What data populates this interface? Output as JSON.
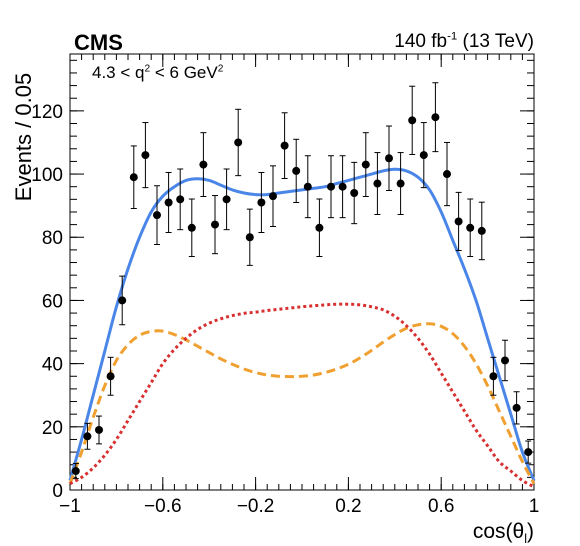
{
  "header": {
    "experiment": "CMS",
    "lumi_value": "140 fb",
    "lumi_exp": "-1",
    "energy": "(13 TeV)",
    "cut_low": "4.3 < q",
    "cut_exp": "2",
    "cut_high": " < 6 GeV",
    "cut_unit_exp": "2"
  },
  "axes": {
    "xlabel_main": "cos(θ",
    "xlabel_sub": "l",
    "xlabel_close": ")",
    "ylabel": "Events / 0.05"
  },
  "chart_data": {
    "type": "scatter",
    "title": "",
    "xlabel": "cos(θl)",
    "ylabel": "Events / 0.05",
    "xlim": [
      -1,
      1
    ],
    "ylim": [
      0,
      138
    ],
    "xticks": [
      -1,
      -0.6,
      -0.2,
      0.2,
      0.6,
      1
    ],
    "xtick_labels": [
      "−1",
      "−0.6",
      "−0.2",
      "0.2",
      "0.6",
      "1"
    ],
    "yticks": [
      0,
      20,
      40,
      60,
      80,
      100,
      120
    ],
    "ytick_labels": [
      "0",
      "20",
      "40",
      "60",
      "80",
      "100",
      "120"
    ],
    "grid": false,
    "data_points": {
      "x": [
        -0.975,
        -0.925,
        -0.875,
        -0.825,
        -0.775,
        -0.725,
        -0.675,
        -0.625,
        -0.575,
        -0.525,
        -0.475,
        -0.425,
        -0.375,
        -0.325,
        -0.275,
        -0.225,
        -0.175,
        -0.125,
        -0.075,
        -0.025,
        0.025,
        0.075,
        0.125,
        0.175,
        0.225,
        0.275,
        0.325,
        0.375,
        0.425,
        0.475,
        0.525,
        0.575,
        0.625,
        0.675,
        0.725,
        0.775,
        0.825,
        0.875,
        0.925,
        0.975
      ],
      "y": [
        6,
        17,
        19,
        36,
        60,
        99,
        106,
        87,
        91,
        92,
        83,
        103,
        84,
        92,
        110,
        80,
        91,
        93,
        109,
        101,
        96,
        83,
        96,
        96,
        94,
        103,
        97,
        105,
        97,
        117,
        106,
        118,
        100,
        85,
        83,
        82,
        36,
        41,
        26,
        12
      ],
      "err": [
        2.4,
        4.1,
        4.4,
        6.0,
        7.7,
        9.9,
        10.3,
        9.3,
        9.5,
        9.6,
        9.1,
        10.1,
        9.2,
        9.6,
        10.5,
        8.9,
        9.5,
        9.6,
        10.4,
        10.0,
        9.8,
        9.1,
        9.8,
        9.8,
        9.7,
        10.1,
        9.8,
        10.2,
        9.8,
        10.8,
        10.3,
        10.9,
        10.0,
        9.2,
        9.1,
        9.1,
        6.0,
        6.4,
        5.1,
        3.5
      ]
    },
    "series": [
      {
        "kind": "total-fit",
        "color": "#4a86e8",
        "style": "solid",
        "x": [
          -1,
          -0.95,
          -0.9,
          -0.85,
          -0.8,
          -0.75,
          -0.7,
          -0.65,
          -0.6,
          -0.55,
          -0.5,
          -0.45,
          -0.4,
          -0.35,
          -0.3,
          -0.25,
          -0.2,
          -0.15,
          -0.1,
          -0.05,
          0,
          0.05,
          0.1,
          0.15,
          0.2,
          0.25,
          0.3,
          0.35,
          0.4,
          0.45,
          0.5,
          0.55,
          0.6,
          0.65,
          0.7,
          0.75,
          0.8,
          0.85,
          0.9,
          0.95,
          1
        ],
        "y": [
          3,
          16,
          30,
          44,
          58,
          70,
          80,
          88,
          93,
          96,
          98,
          98.5,
          98,
          96.5,
          95,
          94,
          93.5,
          93.5,
          94,
          94.5,
          95,
          95.5,
          96,
          97,
          98,
          99,
          100,
          101,
          101.5,
          101,
          99,
          95,
          88,
          79,
          70,
          60,
          48,
          36,
          24,
          12,
          3
        ]
      },
      {
        "kind": "component-1",
        "color": "#f0a030",
        "style": "dashed",
        "x": [
          -1,
          -0.95,
          -0.9,
          -0.85,
          -0.8,
          -0.75,
          -0.7,
          -0.65,
          -0.6,
          -0.55,
          -0.5,
          -0.45,
          -0.4,
          -0.35,
          -0.3,
          -0.25,
          -0.2,
          -0.15,
          -0.1,
          -0.05,
          0,
          0.05,
          0.1,
          0.15,
          0.2,
          0.25,
          0.3,
          0.35,
          0.4,
          0.45,
          0.5,
          0.55,
          0.6,
          0.65,
          0.7,
          0.75,
          0.8,
          0.85,
          0.9,
          0.95,
          1
        ],
        "y": [
          2,
          12,
          23,
          33,
          41,
          46,
          49,
          50.2,
          50.3,
          49.2,
          47.5,
          45.5,
          43.5,
          41.5,
          39.8,
          38.3,
          37.2,
          36.4,
          36,
          35.9,
          36,
          36.4,
          37.2,
          38.3,
          39.8,
          41.8,
          44.2,
          46.8,
          49.2,
          51.2,
          52.3,
          52.6,
          51.8,
          49.5,
          45.5,
          40,
          33,
          25,
          17,
          9,
          2
        ]
      },
      {
        "kind": "component-2",
        "color": "#d83030",
        "style": "dotted",
        "x": [
          -1,
          -0.95,
          -0.9,
          -0.85,
          -0.8,
          -0.75,
          -0.7,
          -0.65,
          -0.6,
          -0.55,
          -0.5,
          -0.45,
          -0.4,
          -0.35,
          -0.3,
          -0.25,
          -0.2,
          -0.15,
          -0.1,
          -0.05,
          0,
          0.05,
          0.1,
          0.15,
          0.2,
          0.25,
          0.3,
          0.35,
          0.4,
          0.45,
          0.5,
          0.55,
          0.6,
          0.65,
          0.7,
          0.75,
          0.8,
          0.85,
          0.9,
          0.95,
          1
        ],
        "y": [
          2,
          4,
          7,
          11,
          16,
          22,
          28,
          34,
          40,
          44.5,
          48,
          50.8,
          52.8,
          54.2,
          55.2,
          55.9,
          56.3,
          56.8,
          57.2,
          57.6,
          58,
          58.3,
          58.6,
          58.8,
          58.8,
          58.6,
          58,
          57,
          55,
          52,
          48,
          43,
          37,
          31,
          25,
          19,
          14,
          9,
          6,
          3,
          1
        ]
      }
    ]
  }
}
